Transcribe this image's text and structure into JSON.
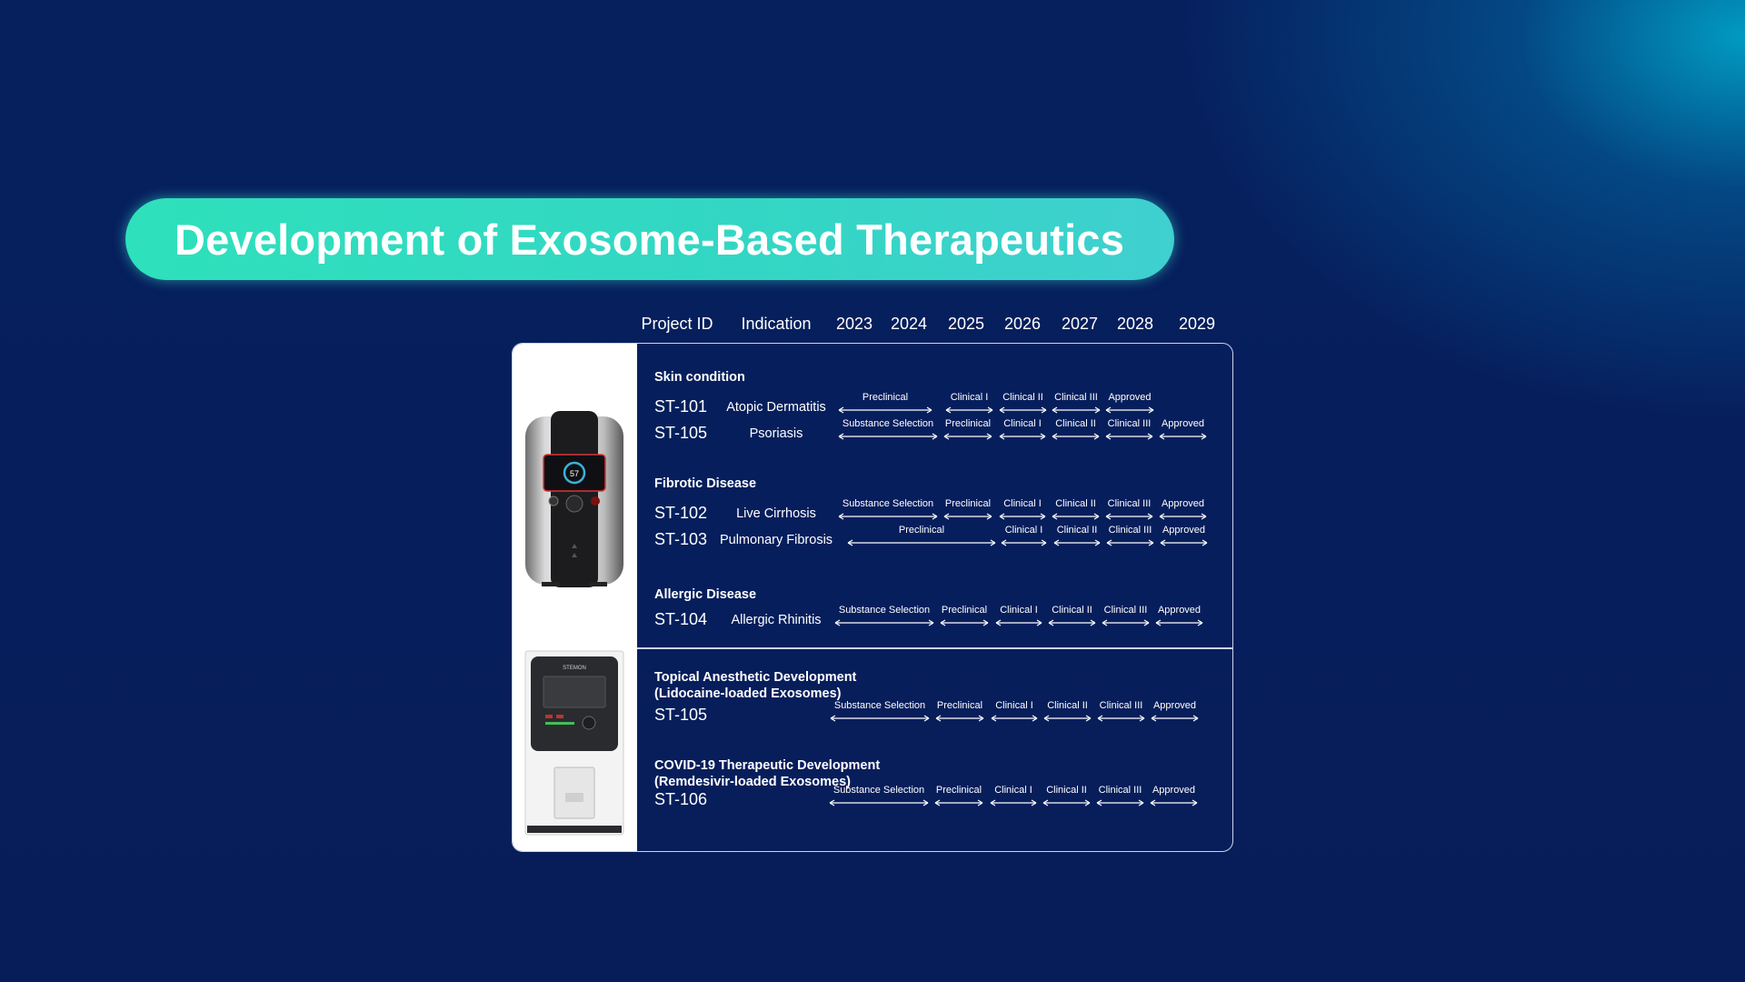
{
  "slide": {
    "title": "Development of Exosome-Based Therapeutics",
    "colors": {
      "background": "#071e5c",
      "title_pill": "#2ee0bb",
      "panel_border": "#c8d4ee",
      "text": "#ffffff"
    }
  },
  "table": {
    "headers": [
      "Project ID",
      "Indication",
      "2023",
      "2024",
      "2025",
      "2026",
      "2027",
      "2028",
      "2029"
    ],
    "sections": [
      {
        "category": "Skin condition",
        "rows": [
          {
            "id": "ST-101",
            "indication": "Atopic Dermatitis",
            "stages": [
              "Preclinical",
              "Clinical I",
              "Clinical II",
              "Clinical III",
              "Approved"
            ]
          },
          {
            "id": "ST-105",
            "indication": "Psoriasis",
            "stages": [
              "Substance Selection",
              "Preclinical",
              "Clinical I",
              "Clinical II",
              "Clinical III",
              "Approved"
            ]
          }
        ]
      },
      {
        "category": "Fibrotic Disease",
        "rows": [
          {
            "id": "ST-102",
            "indication": "Live Cirrhosis",
            "stages": [
              "Substance Selection",
              "Preclinical",
              "Clinical I",
              "Clinical II",
              "Clinical III",
              "Approved"
            ]
          },
          {
            "id": "ST-103",
            "indication": "Pulmonary Fibrosis",
            "stages": [
              "Preclinical",
              "Clinical I",
              "Clinical II",
              "Clinical III",
              "Approved"
            ]
          }
        ]
      },
      {
        "category": "Allergic Disease",
        "rows": [
          {
            "id": "ST-104",
            "indication": "Allergic Rhinitis",
            "stages": [
              "Substance Selection",
              "Preclinical",
              "Clinical I",
              "Clinical II",
              "Clinical III",
              "Approved"
            ]
          }
        ]
      },
      {
        "category": "Topical Anesthetic Development",
        "category_sub": "(Lidocaine-loaded Exosomes)",
        "rows": [
          {
            "id": "ST-105",
            "indication": "",
            "stages": [
              "Substance Selection",
              "Preclinical",
              "Clinical I",
              "Clinical II",
              "Clinical III",
              "Approved"
            ]
          }
        ]
      },
      {
        "category": "COVID-19 Therapeutic Development",
        "category_sub": "(Remdesivir-loaded Exosomes)",
        "rows": [
          {
            "id": "ST-106",
            "indication": "",
            "stages": [
              "Substance Selection",
              "Preclinical",
              "Clinical I",
              "Clinical II",
              "Clinical III",
              "Approved"
            ]
          }
        ]
      }
    ]
  },
  "devices": {
    "top": {
      "icon": "exosome-device-icon",
      "screen_value": "57"
    },
    "bottom": {
      "icon": "exosome-analyzer-icon",
      "brand": "STEMON"
    }
  }
}
